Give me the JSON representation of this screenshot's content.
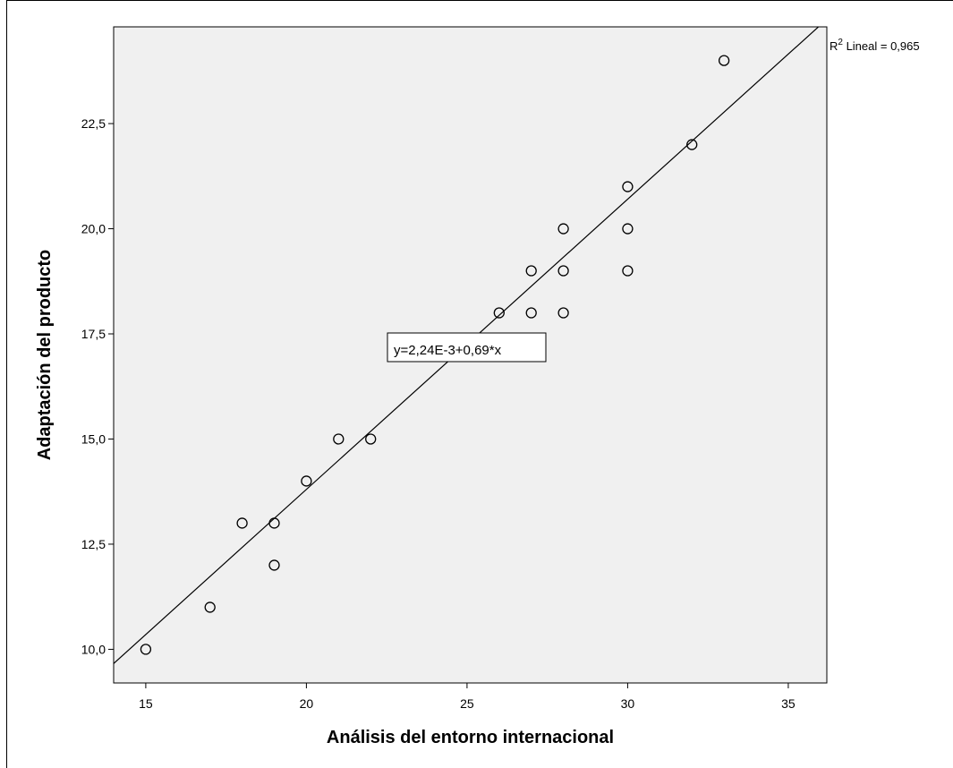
{
  "chart_data": {
    "type": "scatter",
    "xlabel": "Análisis del entorno internacional",
    "ylabel": "Adaptación del producto",
    "xlim": [
      14,
      36.2
    ],
    "ylim": [
      9.2,
      24.8
    ],
    "x_ticks": [
      15,
      20,
      25,
      30,
      35
    ],
    "x_tick_labels": [
      "15",
      "20",
      "25",
      "30",
      "35"
    ],
    "y_ticks": [
      10,
      12.5,
      15,
      17.5,
      20,
      22.5
    ],
    "y_tick_labels": [
      "10,0",
      "12,5",
      "15,0",
      "17,5",
      "20,0",
      "22,5"
    ],
    "grid": false,
    "plot_background": "#f0f0f0",
    "point_color": "#000000",
    "line_color": "#000000",
    "points": [
      {
        "x": 15,
        "y": 10
      },
      {
        "x": 17,
        "y": 11
      },
      {
        "x": 18,
        "y": 13
      },
      {
        "x": 19,
        "y": 13
      },
      {
        "x": 19,
        "y": 12
      },
      {
        "x": 20,
        "y": 14
      },
      {
        "x": 21,
        "y": 15
      },
      {
        "x": 22,
        "y": 15
      },
      {
        "x": 26,
        "y": 18
      },
      {
        "x": 27,
        "y": 19
      },
      {
        "x": 27,
        "y": 18
      },
      {
        "x": 28,
        "y": 20
      },
      {
        "x": 28,
        "y": 19
      },
      {
        "x": 28,
        "y": 18
      },
      {
        "x": 30,
        "y": 21
      },
      {
        "x": 30,
        "y": 20
      },
      {
        "x": 30,
        "y": 19
      },
      {
        "x": 32,
        "y": 22
      },
      {
        "x": 33,
        "y": 24
      }
    ],
    "fit_line": {
      "intercept": 0.00224,
      "slope": 0.69
    },
    "equation_label": "y=2,24E-3+0,69*x",
    "r2_label": "R² Lineal = 0,965",
    "r2_prefix": "R",
    "r2_superscript": "2",
    "r2_suffix": " Lineal = 0,965"
  }
}
